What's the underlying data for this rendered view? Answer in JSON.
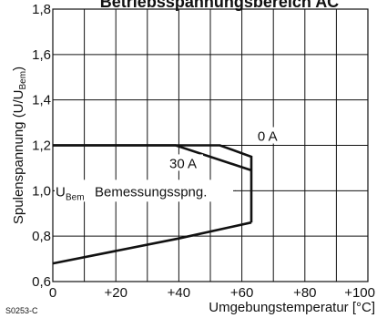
{
  "chart_data": {
    "type": "line",
    "title": "Betriebsspannungsbereich AC",
    "xlabel": "Umgebungstemperatur [°C]",
    "ylabel": {
      "main": "Spulenspannung (U/U",
      "sub": "Bem",
      "close": ")"
    },
    "xlim": [
      0,
      100
    ],
    "ylim": [
      0.6,
      1.8
    ],
    "x_ticks": [
      "0",
      "+20",
      "+40",
      "+60",
      "+80",
      "+100"
    ],
    "y_ticks": [
      "0,6",
      "0,8",
      "1,0",
      "1,2",
      "1,4",
      "1,6",
      "1,8"
    ],
    "grid": true,
    "series": [
      {
        "name": "0 A",
        "points": [
          [
            0,
            1.2
          ],
          [
            53,
            1.2
          ],
          [
            63,
            1.15
          ],
          [
            63,
            0.86
          ]
        ]
      },
      {
        "name": "30 A",
        "points": [
          [
            0,
            1.2
          ],
          [
            39,
            1.2
          ],
          [
            63,
            1.09
          ]
        ]
      },
      {
        "name": "",
        "points": [
          [
            0,
            0.68
          ],
          [
            40,
            0.79
          ],
          [
            63,
            0.86
          ]
        ]
      }
    ],
    "annotations": {
      "label_0A": "0 A",
      "label_30A": "30 A",
      "ubem_main": "1,0",
      "ubem_u": "U",
      "ubem_sub": "Bem",
      "ubem_text": "Bemessungsspng."
    },
    "figure_ref": "S0253-C"
  }
}
